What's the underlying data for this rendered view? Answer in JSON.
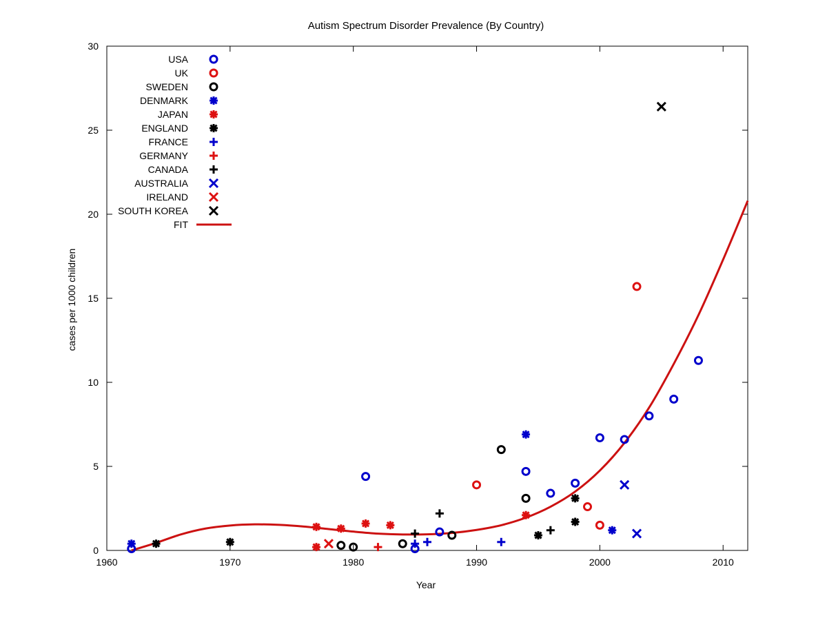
{
  "chart_data": {
    "type": "scatter",
    "title": "Autism Spectrum Disorder Prevalence (By Country)",
    "xlabel": "Year",
    "ylabel": "cases per 1000 children",
    "xlim": [
      1960,
      2012
    ],
    "ylim": [
      0,
      30
    ],
    "xticks": [
      1960,
      1970,
      1980,
      1990,
      2000,
      2010
    ],
    "yticks": [
      0,
      5,
      10,
      15,
      20,
      25,
      30
    ],
    "grid": false,
    "legend_position": "top-left",
    "series": [
      {
        "name": "USA",
        "marker": "circle",
        "color": "#0000cc",
        "points": [
          [
            1962,
            0.1
          ],
          [
            1981,
            4.4
          ],
          [
            1985,
            0.1
          ],
          [
            1987,
            1.1
          ],
          [
            1994,
            4.7
          ],
          [
            1996,
            3.4
          ],
          [
            1998,
            4.0
          ],
          [
            2000,
            6.7
          ],
          [
            2002,
            6.6
          ],
          [
            2004,
            8.0
          ],
          [
            2006,
            9.0
          ],
          [
            2008,
            11.3
          ]
        ]
      },
      {
        "name": "UK",
        "marker": "circle",
        "color": "#dd1111",
        "points": [
          [
            1990,
            3.9
          ],
          [
            1999,
            2.6
          ],
          [
            2000,
            1.5
          ],
          [
            2003,
            15.7
          ]
        ]
      },
      {
        "name": "SWEDEN",
        "marker": "circle",
        "color": "#000000",
        "points": [
          [
            1979,
            0.3
          ],
          [
            1980,
            0.2
          ],
          [
            1984,
            0.4
          ],
          [
            1988,
            0.9
          ],
          [
            1992,
            6.0
          ],
          [
            1994,
            3.1
          ]
        ]
      },
      {
        "name": "DENMARK",
        "marker": "star",
        "color": "#0000cc",
        "points": [
          [
            1962,
            0.4
          ],
          [
            1994,
            6.9
          ],
          [
            2001,
            1.2
          ]
        ]
      },
      {
        "name": "JAPAN",
        "marker": "star",
        "color": "#dd1111",
        "points": [
          [
            1977,
            1.4
          ],
          [
            1977,
            0.2
          ],
          [
            1979,
            1.3
          ],
          [
            1981,
            1.6
          ],
          [
            1983,
            1.5
          ],
          [
            1994,
            2.1
          ]
        ]
      },
      {
        "name": "ENGLAND",
        "marker": "star",
        "color": "#000000",
        "points": [
          [
            1964,
            0.4
          ],
          [
            1970,
            0.5
          ],
          [
            1995,
            0.9
          ],
          [
            1998,
            3.1
          ],
          [
            1998,
            1.7
          ]
        ]
      },
      {
        "name": "FRANCE",
        "marker": "plus",
        "color": "#0000cc",
        "points": [
          [
            1985,
            0.4
          ],
          [
            1986,
            0.5
          ],
          [
            1992,
            0.5
          ]
        ]
      },
      {
        "name": "GERMANY",
        "marker": "plus",
        "color": "#dd1111",
        "points": [
          [
            1982,
            0.2
          ]
        ]
      },
      {
        "name": "CANADA",
        "marker": "plus",
        "color": "#000000",
        "points": [
          [
            1985,
            1.0
          ],
          [
            1987,
            2.2
          ],
          [
            1996,
            1.2
          ]
        ]
      },
      {
        "name": "AUSTRALIA",
        "marker": "x",
        "color": "#0000cc",
        "points": [
          [
            2002,
            3.9
          ],
          [
            2003,
            1.0
          ]
        ]
      },
      {
        "name": "IRELAND",
        "marker": "x",
        "color": "#dd1111",
        "points": [
          [
            1978,
            0.4
          ]
        ]
      },
      {
        "name": "SOUTH KOREA",
        "marker": "x",
        "color": "#000000",
        "points": [
          [
            2005,
            26.4
          ]
        ]
      }
    ],
    "fit": {
      "name": "FIT",
      "color": "#cc1111",
      "points": [
        [
          1962,
          0.0
        ],
        [
          1964,
          0.45
        ],
        [
          1966,
          0.95
        ],
        [
          1968,
          1.3
        ],
        [
          1970,
          1.48
        ],
        [
          1972,
          1.55
        ],
        [
          1974,
          1.52
        ],
        [
          1976,
          1.42
        ],
        [
          1978,
          1.27
        ],
        [
          1980,
          1.12
        ],
        [
          1982,
          1.0
        ],
        [
          1984,
          0.95
        ],
        [
          1986,
          0.96
        ],
        [
          1988,
          1.04
        ],
        [
          1990,
          1.22
        ],
        [
          1992,
          1.5
        ],
        [
          1994,
          1.95
        ],
        [
          1996,
          2.6
        ],
        [
          1998,
          3.5
        ],
        [
          2000,
          4.75
        ],
        [
          2002,
          6.4
        ],
        [
          2004,
          8.5
        ],
        [
          2006,
          11.1
        ],
        [
          2008,
          14.0
        ],
        [
          2010,
          17.3
        ],
        [
          2012,
          20.8
        ]
      ]
    }
  }
}
